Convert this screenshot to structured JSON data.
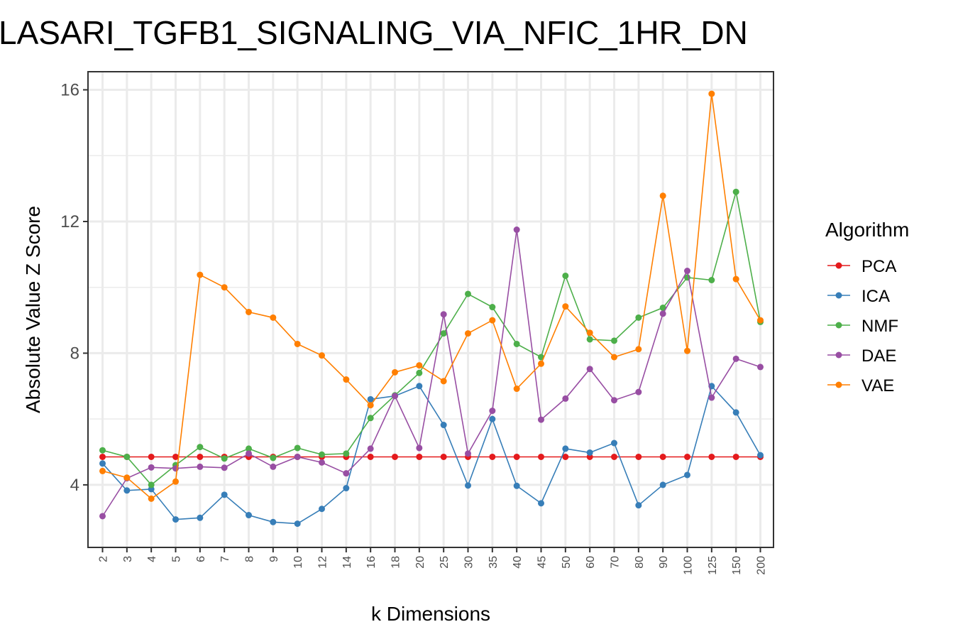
{
  "chart_data": {
    "type": "line",
    "title": "LASARI_TGFB1_SIGNALING_VIA_NFIC_1HR_DN",
    "xlabel": "k Dimensions",
    "ylabel": "Absolute Value Z Score",
    "categories": [
      "2",
      "3",
      "4",
      "5",
      "6",
      "7",
      "8",
      "9",
      "10",
      "12",
      "14",
      "16",
      "18",
      "20",
      "25",
      "30",
      "35",
      "40",
      "45",
      "50",
      "60",
      "70",
      "80",
      "90",
      "100",
      "125",
      "150",
      "200"
    ],
    "yticks": [
      4,
      8,
      12,
      16
    ],
    "ylim": [
      2.1,
      16.55
    ],
    "grid": true,
    "legend": {
      "title": "Algorithm",
      "position": "right"
    },
    "series": [
      {
        "name": "PCA",
        "color": "#e41a1c",
        "values": [
          4.85,
          4.85,
          4.85,
          4.85,
          4.85,
          4.85,
          4.85,
          4.85,
          4.85,
          4.85,
          4.85,
          4.85,
          4.85,
          4.85,
          4.85,
          4.85,
          4.85,
          4.85,
          4.85,
          4.85,
          4.85,
          4.85,
          4.85,
          4.85,
          4.85,
          4.85,
          4.85,
          4.85
        ]
      },
      {
        "name": "ICA",
        "color": "#377eb8",
        "values": [
          4.65,
          3.83,
          3.87,
          2.95,
          3.0,
          3.7,
          3.08,
          2.87,
          2.82,
          3.27,
          3.9,
          6.6,
          6.7,
          7.0,
          5.82,
          3.98,
          6.0,
          3.97,
          3.44,
          5.1,
          4.98,
          5.27,
          3.38,
          4.0,
          4.3,
          7.0,
          6.2,
          4.9
        ]
      },
      {
        "name": "NMF",
        "color": "#4daf4a",
        "values": [
          5.05,
          4.85,
          4.0,
          4.6,
          5.15,
          4.8,
          5.1,
          4.82,
          5.12,
          4.92,
          4.95,
          6.03,
          6.72,
          7.4,
          8.6,
          9.8,
          9.4,
          8.28,
          7.88,
          10.35,
          8.42,
          8.38,
          9.08,
          9.38,
          10.3,
          10.22,
          12.9,
          8.95
        ]
      },
      {
        "name": "DAE",
        "color": "#984ea3",
        "values": [
          3.05,
          4.2,
          4.53,
          4.5,
          4.55,
          4.52,
          4.95,
          4.55,
          4.85,
          4.68,
          4.35,
          5.1,
          6.7,
          5.12,
          9.18,
          4.95,
          6.25,
          11.75,
          5.98,
          6.62,
          7.52,
          6.57,
          6.82,
          9.2,
          10.5,
          6.65,
          7.83,
          7.58
        ]
      },
      {
        "name": "VAE",
        "color": "#ff7f00",
        "values": [
          4.42,
          4.22,
          3.58,
          4.1,
          10.38,
          10.0,
          9.25,
          9.08,
          8.28,
          7.93,
          7.2,
          6.42,
          7.42,
          7.63,
          7.15,
          8.6,
          9.0,
          6.92,
          7.68,
          9.42,
          8.62,
          7.88,
          8.12,
          12.78,
          8.07,
          15.88,
          10.25,
          9.0
        ]
      }
    ]
  }
}
